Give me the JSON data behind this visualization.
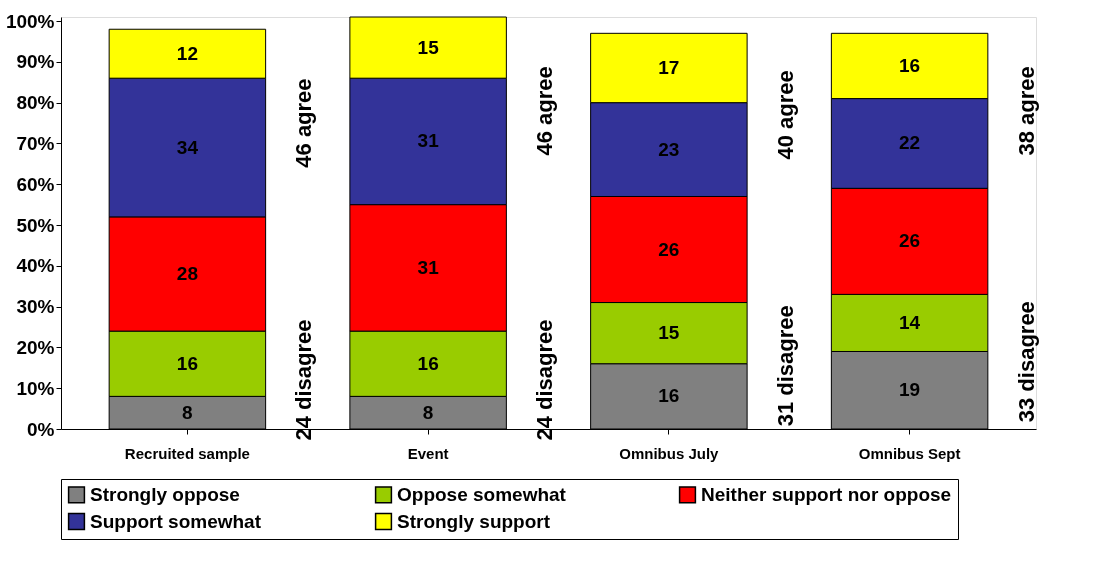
{
  "chart_data": {
    "type": "bar",
    "stacked": true,
    "categories": [
      "Recruited sample",
      "Event",
      "Omnibus July",
      "Omnibus Sept"
    ],
    "series": [
      {
        "name": "Strongly oppose",
        "color": "#808080",
        "values": [
          8,
          8,
          16,
          19
        ]
      },
      {
        "name": "Oppose somewhat",
        "color": "#99cc00",
        "values": [
          16,
          16,
          15,
          14
        ]
      },
      {
        "name": "Neither support nor oppose",
        "color": "#ff0000",
        "values": [
          28,
          31,
          26,
          26
        ]
      },
      {
        "name": "Support somewhat",
        "color": "#333399",
        "values": [
          34,
          31,
          23,
          22
        ]
      },
      {
        "name": "Strongly support",
        "color": "#ffff00",
        "values": [
          12,
          15,
          17,
          16
        ]
      }
    ],
    "data_labels": true,
    "ylim": [
      0,
      101
    ],
    "yticks": [
      {
        "value": 0,
        "label": "0%"
      },
      {
        "value": 10,
        "label": "10%"
      },
      {
        "value": 20,
        "label": "20%"
      },
      {
        "value": 30,
        "label": "30%"
      },
      {
        "value": 40,
        "label": "40%"
      },
      {
        "value": 50,
        "label": "50%"
      },
      {
        "value": 60,
        "label": "60%"
      },
      {
        "value": 70,
        "label": "70%"
      },
      {
        "value": 80,
        "label": "80%"
      },
      {
        "value": 90,
        "label": "90%"
      },
      {
        "value": 100,
        "label": "100%"
      }
    ],
    "annotations": [
      "46 agree",
      "24 disagree",
      "46 agree",
      "24 disagree",
      "40 agree",
      "31 disagree",
      "38 agree",
      "33 disagree"
    ],
    "grid": false,
    "legend": "bottom"
  }
}
